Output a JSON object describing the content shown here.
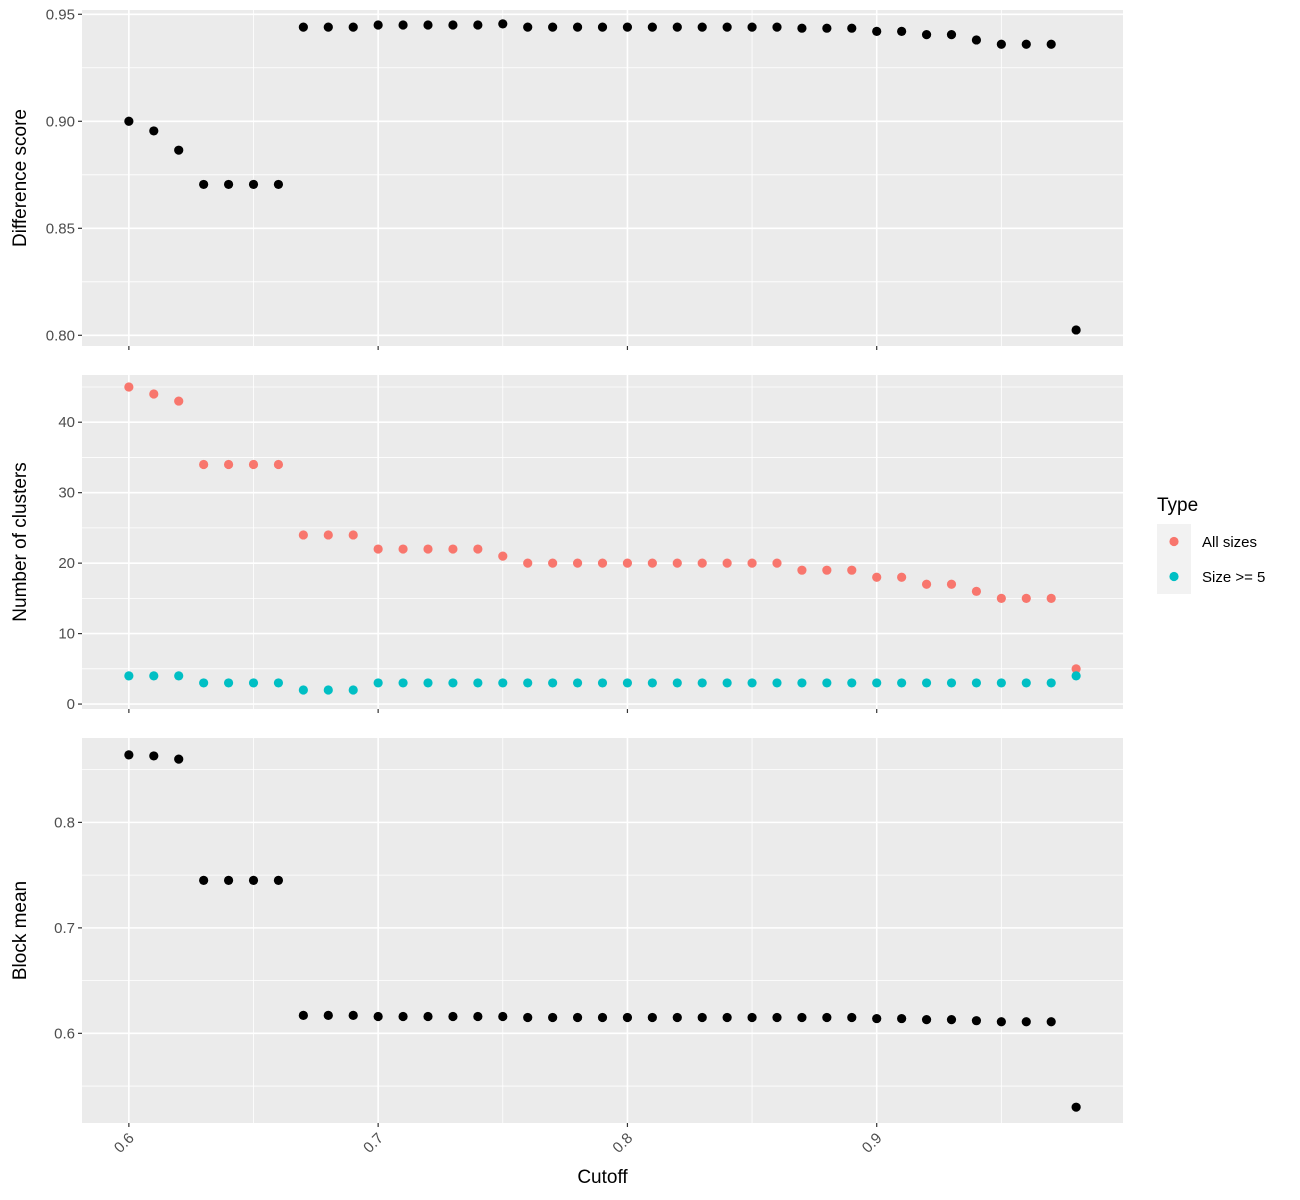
{
  "chart_data": {
    "type": "scatter",
    "x_label": "Cutoff",
    "x_ticks": [
      0.6,
      0.7,
      0.8,
      0.9
    ],
    "x_tick_labels": [
      "0.6",
      "0.7",
      "0.8",
      "0.9"
    ],
    "x_range": [
      0.5812,
      0.9988
    ],
    "x": [
      0.6,
      0.61,
      0.62,
      0.63,
      0.64,
      0.65,
      0.66,
      0.67,
      0.68,
      0.69,
      0.7,
      0.71,
      0.72,
      0.73,
      0.74,
      0.75,
      0.76,
      0.77,
      0.78,
      0.79,
      0.8,
      0.81,
      0.82,
      0.83,
      0.84,
      0.85,
      0.86,
      0.87,
      0.88,
      0.89,
      0.9,
      0.91,
      0.92,
      0.93,
      0.94,
      0.95,
      0.96,
      0.97,
      0.98
    ],
    "panels": [
      {
        "id": "difference",
        "y_label": "Difference score",
        "y_range": [
          0.795,
          0.952
        ],
        "y_ticks": [
          0.8,
          0.85,
          0.9,
          0.95
        ],
        "y_tick_labels": [
          "0.80",
          "0.85",
          "0.90",
          "0.95"
        ],
        "series": [
          {
            "name": "Difference score",
            "color": "#000000",
            "values": [
              0.9,
              0.8955,
              0.8865,
              0.8705,
              0.8705,
              0.8705,
              0.8705,
              0.944,
              0.944,
              0.944,
              0.945,
              0.945,
              0.945,
              0.945,
              0.945,
              0.9455,
              0.944,
              0.944,
              0.944,
              0.944,
              0.944,
              0.944,
              0.944,
              0.944,
              0.944,
              0.944,
              0.944,
              0.9435,
              0.9435,
              0.9435,
              0.942,
              0.942,
              0.9405,
              0.9405,
              0.938,
              0.936,
              0.936,
              0.936,
              0.8025
            ]
          }
        ]
      },
      {
        "id": "clusters",
        "y_label": "Number of clusters",
        "y_range": [
          -0.7,
          46.7
        ],
        "y_ticks": [
          0,
          10,
          20,
          30,
          40
        ],
        "y_tick_labels": [
          "0",
          "10",
          "20",
          "30",
          "40"
        ],
        "series": [
          {
            "name": "All sizes",
            "color": "#F8766D",
            "values": [
              45,
              44,
              43,
              34,
              34,
              34,
              34,
              24,
              24,
              24,
              22,
              22,
              22,
              22,
              22,
              21,
              20,
              20,
              20,
              20,
              20,
              20,
              20,
              20,
              20,
              20,
              20,
              19,
              19,
              19,
              18,
              18,
              17,
              17,
              16,
              15,
              15,
              15,
              5
            ]
          },
          {
            "name": "Size >= 5",
            "color": "#00BFC4",
            "values": [
              4,
              4,
              4,
              3,
              3,
              3,
              3,
              2,
              2,
              2,
              3,
              3,
              3,
              3,
              3,
              3,
              3,
              3,
              3,
              3,
              3,
              3,
              3,
              3,
              3,
              3,
              3,
              3,
              3,
              3,
              3,
              3,
              3,
              3,
              3,
              3,
              3,
              3,
              4
            ]
          }
        ]
      },
      {
        "id": "blockmean",
        "y_label": "Block mean",
        "y_range": [
          0.515,
          0.88
        ],
        "y_ticks": [
          0.6,
          0.7,
          0.8
        ],
        "y_tick_labels": [
          "0.6",
          "0.7",
          "0.8"
        ],
        "series": [
          {
            "name": "Block mean",
            "color": "#000000",
            "values": [
              0.864,
              0.863,
              0.86,
              0.745,
              0.745,
              0.745,
              0.745,
              0.617,
              0.617,
              0.617,
              0.616,
              0.616,
              0.616,
              0.616,
              0.616,
              0.616,
              0.615,
              0.615,
              0.615,
              0.615,
              0.615,
              0.615,
              0.615,
              0.615,
              0.615,
              0.615,
              0.615,
              0.615,
              0.615,
              0.615,
              0.614,
              0.614,
              0.613,
              0.613,
              0.612,
              0.611,
              0.611,
              0.611,
              0.53
            ]
          }
        ]
      }
    ],
    "legend": {
      "title": "Type",
      "position": "right",
      "entries": [
        {
          "label": "All sizes",
          "color": "#F8766D"
        },
        {
          "label": "Size >= 5",
          "color": "#00BFC4"
        }
      ]
    },
    "panel_background": "#EBEBEB",
    "grid_color": "#FFFFFF"
  }
}
